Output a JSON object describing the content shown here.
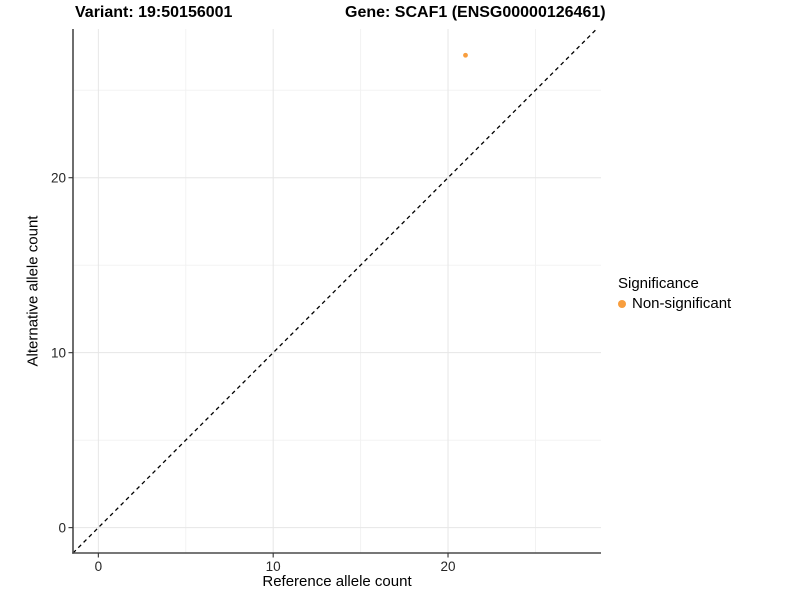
{
  "chart_data": {
    "type": "scatter",
    "title_left": "Variant: 19:50156001",
    "title_right": "Gene: SCAF1 (ENSG00000126461)",
    "xlabel": "Reference allele count",
    "ylabel": "Alternative allele count",
    "xlim": [
      -1.45,
      28.75
    ],
    "ylim": [
      -1.45,
      28.5
    ],
    "x_major_ticks": [
      0,
      10,
      20
    ],
    "y_major_ticks": [
      0,
      10,
      20
    ],
    "x_minor_gridlines": [
      5,
      15,
      25
    ],
    "y_minor_gridlines": [
      5,
      15,
      25
    ],
    "grid": "major-and-minor",
    "reference_line": {
      "style": "dashed",
      "slope": 1,
      "intercept": 0,
      "color": "#000000"
    },
    "points": [
      {
        "x": 21,
        "y": 27,
        "series": "Non-significant"
      }
    ],
    "series": [
      {
        "name": "Non-significant",
        "color": "#F89E3E"
      }
    ],
    "legend": {
      "title": "Significance",
      "position": "right",
      "items": [
        {
          "label": "Non-significant",
          "color": "#F89E3E"
        }
      ]
    },
    "colors": {
      "background": "#ffffff",
      "grid_major": "#e6e6e6",
      "grid_minor": "#f1f1f1",
      "axis_line": "#4a4a4a",
      "tick_mark": "#333333",
      "tick_text": "#262626",
      "point": "#F89E3E"
    }
  }
}
